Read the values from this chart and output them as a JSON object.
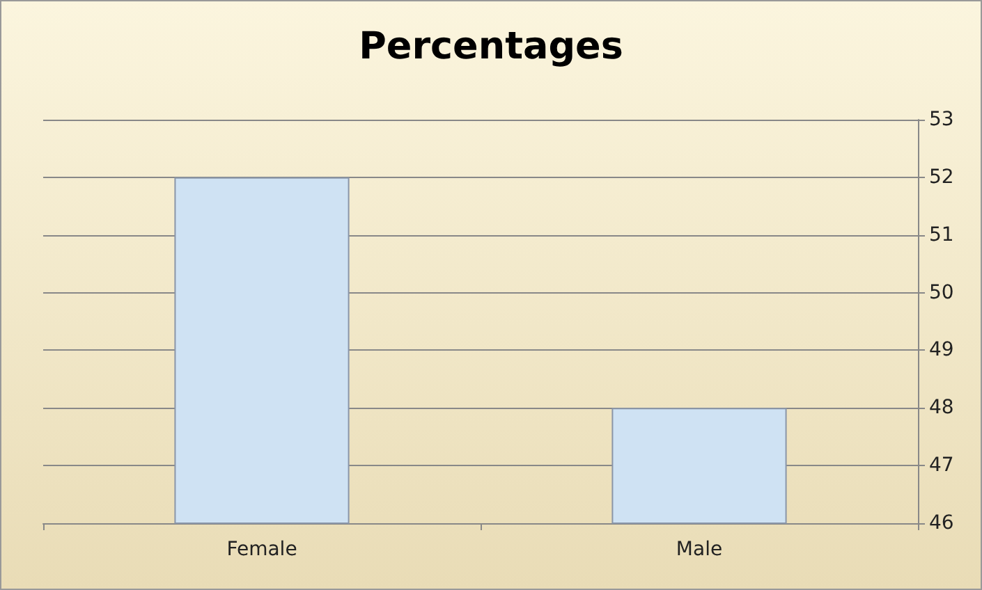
{
  "chart_data": {
    "type": "bar",
    "title": "Percentages",
    "categories": [
      "Female",
      "Male"
    ],
    "values": [
      52,
      48
    ],
    "color": "#cfe2f3",
    "ylim": [
      46,
      53
    ],
    "yticks": [
      46,
      47,
      48,
      49,
      50,
      51,
      52,
      53
    ],
    "grid": "y"
  }
}
